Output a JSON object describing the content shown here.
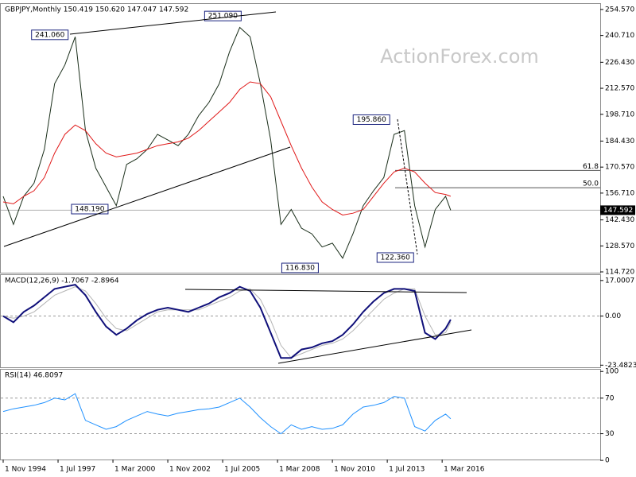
{
  "chart_data": [
    {
      "type": "line",
      "title": "GBPJPY,Monthly  150.419 150.620 147.047 147.592",
      "watermark": "ActionForex.com",
      "xlim": [
        1994.717,
        2023.85
      ],
      "ylim": [
        114.3,
        257.5
      ],
      "yticks": [
        {
          "value": 254.57,
          "label": "254.570"
        },
        {
          "value": 240.71,
          "label": "240.710"
        },
        {
          "value": 226.43,
          "label": "226.430"
        },
        {
          "value": 212.57,
          "label": "212.570"
        },
        {
          "value": 198.71,
          "label": "198.710"
        },
        {
          "value": 184.43,
          "label": "184.430"
        },
        {
          "value": 170.57,
          "label": "170.570"
        },
        {
          "value": 156.71,
          "label": "156.710"
        },
        {
          "value": 142.43,
          "label": "142.430"
        },
        {
          "value": 128.57,
          "label": "128.570"
        },
        {
          "value": 114.72,
          "label": "114.720"
        }
      ],
      "x": [
        1994.833,
        1995.333,
        1995.833,
        1996.333,
        1996.833,
        1997.333,
        1997.833,
        1998.333,
        1998.833,
        1999.333,
        1999.833,
        2000.333,
        2000.833,
        2001.333,
        2001.833,
        2002.333,
        2002.833,
        2003.333,
        2003.833,
        2004.333,
        2004.833,
        2005.333,
        2005.833,
        2006.333,
        2006.833,
        2007.333,
        2007.833,
        2008.333,
        2008.833,
        2009.333,
        2009.833,
        2010.333,
        2010.833,
        2011.333,
        2011.833,
        2012.333,
        2012.833,
        2013.333,
        2013.833,
        2014.333,
        2014.833,
        2015.333,
        2015.833,
        2016.333,
        2016.583
      ],
      "series": [
        {
          "color": "#1a2e1a",
          "values": [
            155,
            140,
            155,
            162,
            180,
            215,
            225,
            240,
            190,
            170,
            160,
            150,
            172,
            175,
            180,
            188,
            185,
            182,
            188,
            198,
            205,
            215,
            232,
            245,
            240,
            215,
            185,
            140,
            148,
            138,
            135,
            128,
            130,
            122,
            135,
            150,
            158,
            165,
            188,
            190,
            150,
            128,
            148,
            155,
            147.592
          ]
        },
        {
          "color": "#e01818",
          "values": [
            152,
            151,
            155,
            158,
            165,
            178,
            188,
            193,
            190,
            183,
            178,
            176,
            177,
            178,
            180,
            182,
            183,
            184,
            186,
            190,
            195,
            200,
            205,
            212,
            216,
            215,
            208,
            195,
            182,
            170,
            160,
            152,
            148,
            145,
            146,
            148,
            155,
            162,
            168,
            170,
            168,
            162,
            157,
            156,
            155
          ]
        }
      ],
      "last_price": 147.592,
      "levels": [
        {
          "value": 168.8,
          "label": "61.8"
        },
        {
          "value": 159.6,
          "label": "50.0"
        }
      ],
      "annotations": [
        {
          "label": "241.060",
          "value": 241.06,
          "x": 1997.99
        },
        {
          "label": "251.090",
          "value": 251.09,
          "x": 2006.4
        },
        {
          "label": "195.860",
          "value": 195.86,
          "x": 2013.62
        },
        {
          "label": "148.190",
          "value": 148.19,
          "x": 1999.93
        },
        {
          "label": "116.830",
          "value": 116.83,
          "x": 2010.15
        },
        {
          "label": "122.360",
          "value": 122.36,
          "x": 2014.78
        }
      ]
    },
    {
      "type": "line",
      "title": "MACD(12,26,9) -1.7067 -2.8964",
      "xlim": [
        1994.717,
        2023.85
      ],
      "ylim": [
        -24.5,
        19.6
      ],
      "yticks": [
        17.0007,
        {
          "value": 0,
          "label": "0.00"
        },
        -23.4823
      ],
      "level_lines": [
        0
      ],
      "x": [
        1994.833,
        1995.333,
        1995.833,
        1996.333,
        1996.833,
        1997.333,
        1997.833,
        1998.333,
        1998.833,
        1999.333,
        1999.833,
        2000.333,
        2000.833,
        2001.333,
        2001.833,
        2002.333,
        2002.833,
        2003.333,
        2003.833,
        2004.333,
        2004.833,
        2005.333,
        2005.833,
        2006.333,
        2006.833,
        2007.333,
        2007.833,
        2008.333,
        2008.833,
        2009.333,
        2009.833,
        2010.333,
        2010.833,
        2011.333,
        2011.833,
        2012.333,
        2012.833,
        2013.333,
        2013.833,
        2014.333,
        2014.833,
        2015.333,
        2015.833,
        2016.333,
        2016.583
      ],
      "series": [
        {
          "color": "#b4b4b4",
          "width": 1,
          "values": [
            0,
            -1,
            0,
            2,
            6,
            10,
            12,
            14,
            12,
            6,
            -1,
            -6,
            -7,
            -4,
            -1,
            2,
            3,
            3,
            3,
            3,
            5,
            7,
            9,
            12,
            13,
            8,
            -2,
            -14,
            -20,
            -18,
            -16,
            -14,
            -13,
            -11,
            -7,
            -2,
            3,
            8,
            11,
            13,
            13,
            0,
            -9,
            -8,
            -2.8964
          ]
        },
        {
          "color": "#10107a",
          "width": 2,
          "values": [
            0,
            -3,
            2,
            5,
            9,
            13,
            14,
            15,
            10,
            2,
            -5,
            -9,
            -6,
            -2,
            1,
            3,
            4,
            3,
            2,
            4,
            6,
            9,
            11,
            14,
            12,
            4,
            -8,
            -20,
            -20,
            -16,
            -15,
            -13,
            -12,
            -9,
            -4,
            2,
            7,
            11,
            13,
            13,
            12,
            -8,
            -11,
            -6,
            -1.7067
          ]
        }
      ]
    },
    {
      "type": "line",
      "title": "RSI(14) 46.8097",
      "xlim": [
        1994.717,
        2023.85
      ],
      "ylim": [
        1,
        102
      ],
      "yticks": [
        100,
        70,
        30,
        0
      ],
      "level_lines": [
        70,
        30
      ],
      "x": [
        1994.833,
        1995.333,
        1995.833,
        1996.333,
        1996.833,
        1997.333,
        1997.833,
        1998.333,
        1998.833,
        1999.333,
        1999.833,
        2000.333,
        2000.833,
        2001.333,
        2001.833,
        2002.333,
        2002.833,
        2003.333,
        2003.833,
        2004.333,
        2004.833,
        2005.333,
        2005.833,
        2006.333,
        2006.833,
        2007.333,
        2007.833,
        2008.333,
        2008.833,
        2009.333,
        2009.833,
        2010.333,
        2010.833,
        2011.333,
        2011.833,
        2012.333,
        2012.833,
        2013.333,
        2013.833,
        2014.333,
        2014.833,
        2015.333,
        2015.833,
        2016.333,
        2016.583
      ],
      "series": [
        {
          "color": "#1e90ff",
          "width": 1,
          "values": [
            55,
            58,
            60,
            62,
            65,
            70,
            68,
            75,
            45,
            40,
            35,
            38,
            45,
            50,
            55,
            52,
            50,
            53,
            55,
            57,
            58,
            60,
            65,
            70,
            60,
            48,
            38,
            30,
            40,
            35,
            38,
            35,
            36,
            40,
            52,
            60,
            62,
            65,
            72,
            70,
            38,
            33,
            45,
            52,
            46.8097
          ]
        }
      ],
      "xticks": [
        {
          "value": 1994.833,
          "label": "1 Nov 1994"
        },
        {
          "value": 1997.5,
          "label": "1 Jul 1997"
        },
        {
          "value": 2000.167,
          "label": "1 Mar 2000"
        },
        {
          "value": 2002.833,
          "label": "1 Nov 2002"
        },
        {
          "value": 2005.5,
          "label": "1 Jul 2005"
        },
        {
          "value": 2008.167,
          "label": "1 Mar 2008"
        },
        {
          "value": 2010.833,
          "label": "1 Nov 2010"
        },
        {
          "value": 2013.5,
          "label": "1 Jul 2013"
        },
        {
          "value": 2016.167,
          "label": "1 Mar 2016"
        }
      ]
    }
  ]
}
